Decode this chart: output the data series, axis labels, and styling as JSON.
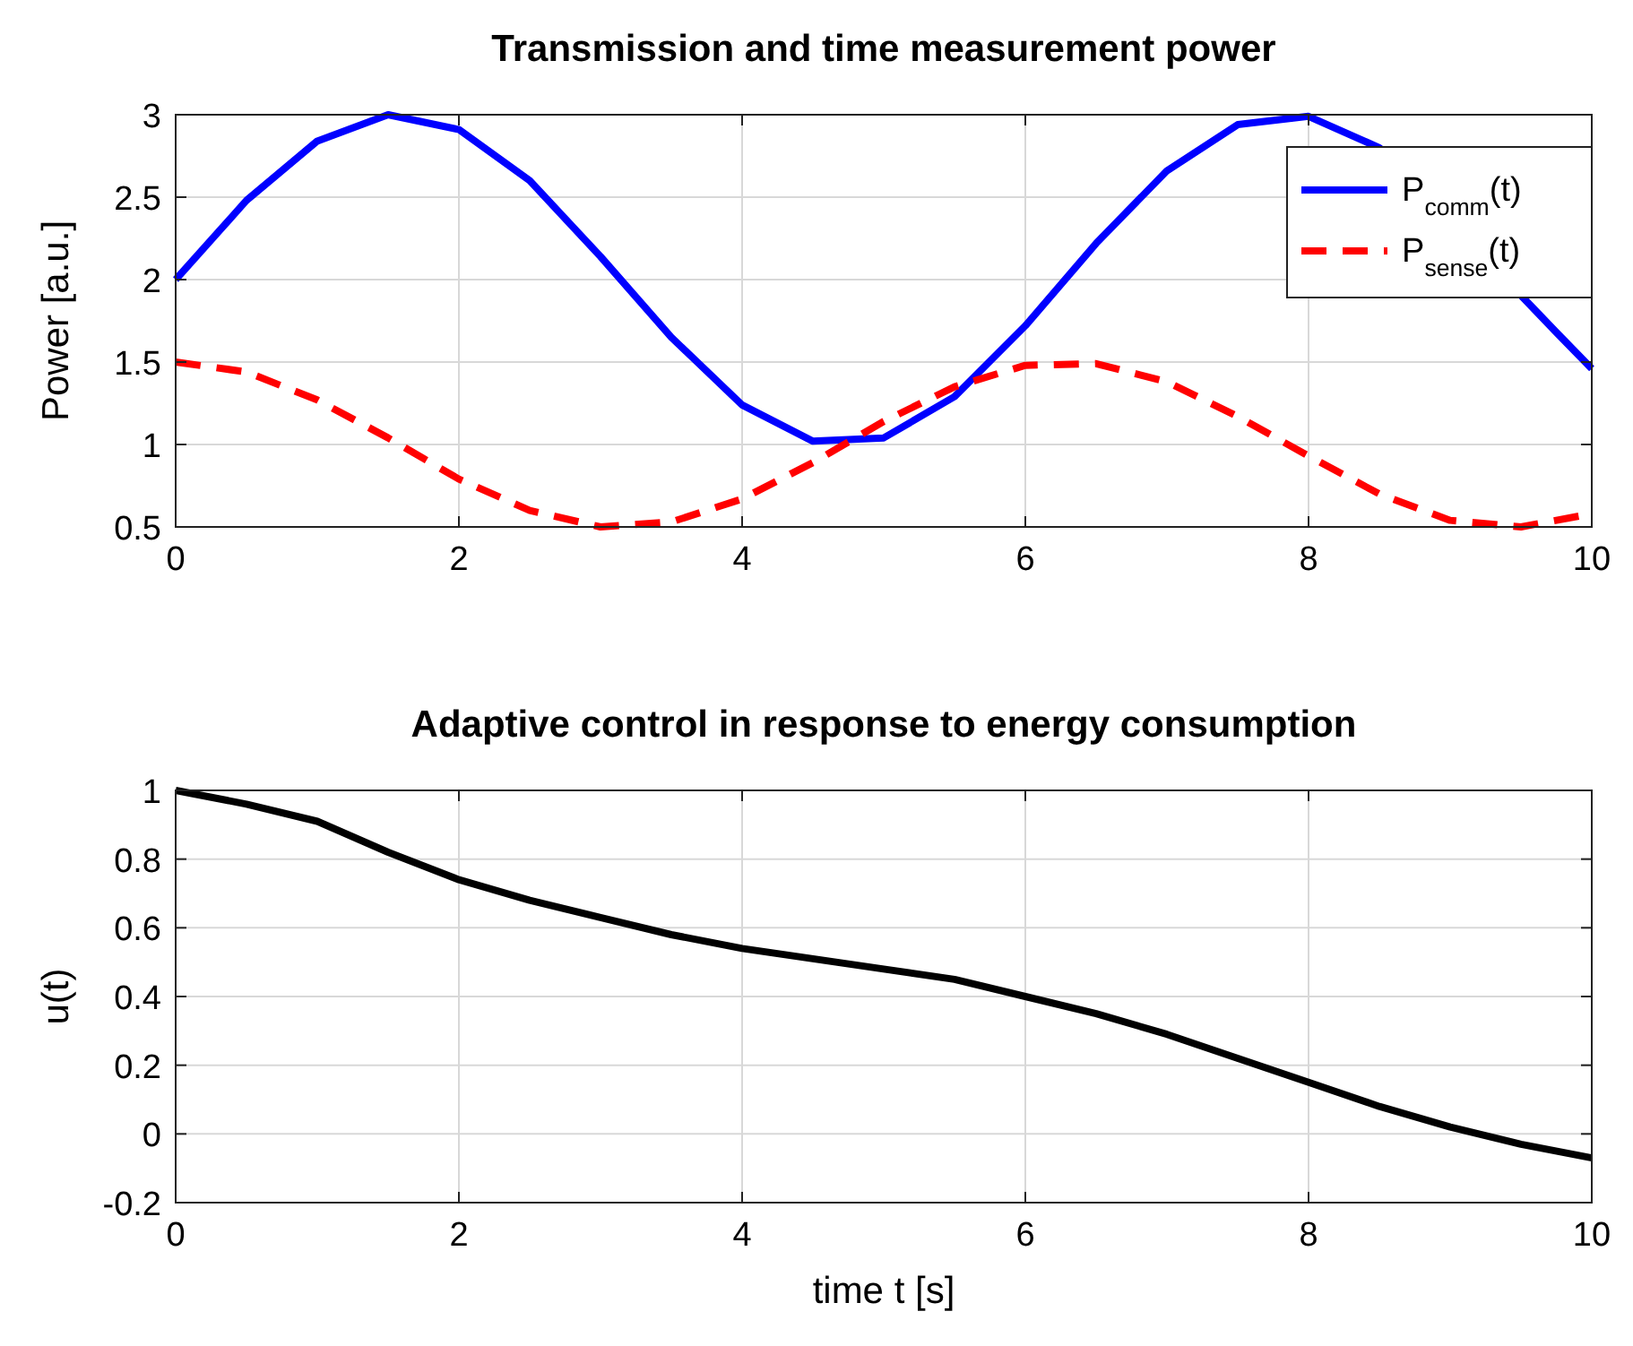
{
  "chart_data": [
    {
      "type": "line",
      "title": "Transmission and time measurement power",
      "ylabel": "Power [a.u.]",
      "x": [
        0,
        0.5,
        1,
        1.5,
        2,
        2.5,
        3,
        3.5,
        4,
        4.5,
        5,
        5.5,
        6,
        6.5,
        7,
        7.5,
        8,
        8.5,
        9,
        9.5,
        10
      ],
      "series": [
        {
          "name": "P$_{comm}$(t)",
          "color": "#0000ff",
          "line_style": "solid",
          "x": [
            0,
            0.5,
            1,
            1.5,
            2,
            2.5,
            3,
            3.5,
            4,
            4.5,
            5,
            5.5,
            6,
            6.5,
            7,
            7.5,
            8,
            8.5,
            9.75,
            10
          ],
          "values": [
            2.0,
            2.48,
            2.84,
            3.0,
            2.91,
            2.6,
            2.14,
            1.65,
            1.24,
            1.02,
            1.04,
            1.29,
            1.72,
            2.22,
            2.66,
            2.94,
            2.99,
            2.8,
            1.68,
            1.46
          ]
        },
        {
          "name": "P$_{sense}$(t)",
          "color": "#ff0000",
          "line_style": "dashed",
          "values": [
            1.5,
            1.44,
            1.27,
            1.04,
            0.79,
            0.6,
            0.5,
            0.53,
            0.67,
            0.89,
            1.14,
            1.35,
            1.48,
            1.49,
            1.38,
            1.17,
            0.93,
            0.7,
            0.54,
            0.5,
            0.58
          ]
        }
      ],
      "xlim": [
        0,
        10
      ],
      "xticks": [
        0,
        2,
        4,
        6,
        8,
        10
      ],
      "ylim": [
        0.5,
        3
      ],
      "yticks": [
        0.5,
        1,
        1.5,
        2,
        2.5,
        3
      ],
      "grid": true,
      "legend": "top right"
    },
    {
      "type": "line",
      "title": "Adaptive control in response to energy consumption",
      "xlabel": "time t [s]",
      "ylabel": "u(t)",
      "x": [
        0,
        0.5,
        1,
        1.5,
        2,
        2.5,
        3,
        3.5,
        4,
        4.5,
        5,
        5.5,
        6,
        6.5,
        7,
        7.5,
        8,
        8.5,
        9,
        9.5,
        10
      ],
      "series": [
        {
          "color": "#000000",
          "line_style": "solid",
          "values": [
            1.0,
            0.96,
            0.91,
            0.82,
            0.74,
            0.68,
            0.63,
            0.58,
            0.54,
            0.51,
            0.48,
            0.45,
            0.4,
            0.35,
            0.29,
            0.22,
            0.15,
            0.08,
            0.02,
            -0.03,
            -0.07
          ]
        }
      ],
      "xlim": [
        0,
        10
      ],
      "xticks": [
        0,
        2,
        4,
        6,
        8,
        10
      ],
      "ylim": [
        -0.2,
        1
      ],
      "yticks": [
        -0.2,
        0,
        0.2,
        0.4,
        0.6,
        0.8,
        1
      ],
      "grid": true
    }
  ]
}
